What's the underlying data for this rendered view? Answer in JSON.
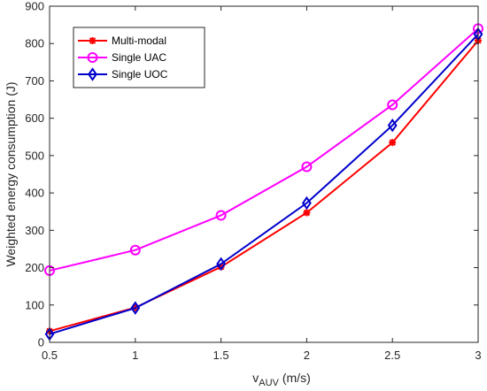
{
  "chart_data": {
    "type": "line",
    "x": [
      0.5,
      1,
      1.5,
      2,
      2.5,
      3
    ],
    "xlabel_main": "v",
    "xlabel_sub": "AUV",
    "xlabel_unit": "(m/s)",
    "ylabel": "Weighted energy consumption (J)",
    "xlim": [
      0.5,
      3
    ],
    "ylim": [
      0,
      900
    ],
    "xticks": [
      0.5,
      1,
      1.5,
      2,
      2.5,
      3
    ],
    "yticks": [
      0,
      100,
      200,
      300,
      400,
      500,
      600,
      700,
      800,
      900
    ],
    "grid": false,
    "legend_position": "top-left",
    "series": [
      {
        "name": "Multi-modal",
        "color": "#ff0000",
        "marker": "asterisk",
        "values": [
          30,
          93,
          202,
          347,
          535,
          808
        ]
      },
      {
        "name": "Single UAC",
        "color": "#ff00ff",
        "marker": "circle",
        "values": [
          192,
          247,
          340,
          470,
          636,
          840
        ]
      },
      {
        "name": "Single UOC",
        "color": "#0000cc",
        "marker": "diamond",
        "values": [
          22,
          92,
          210,
          373,
          581,
          825
        ]
      }
    ]
  }
}
